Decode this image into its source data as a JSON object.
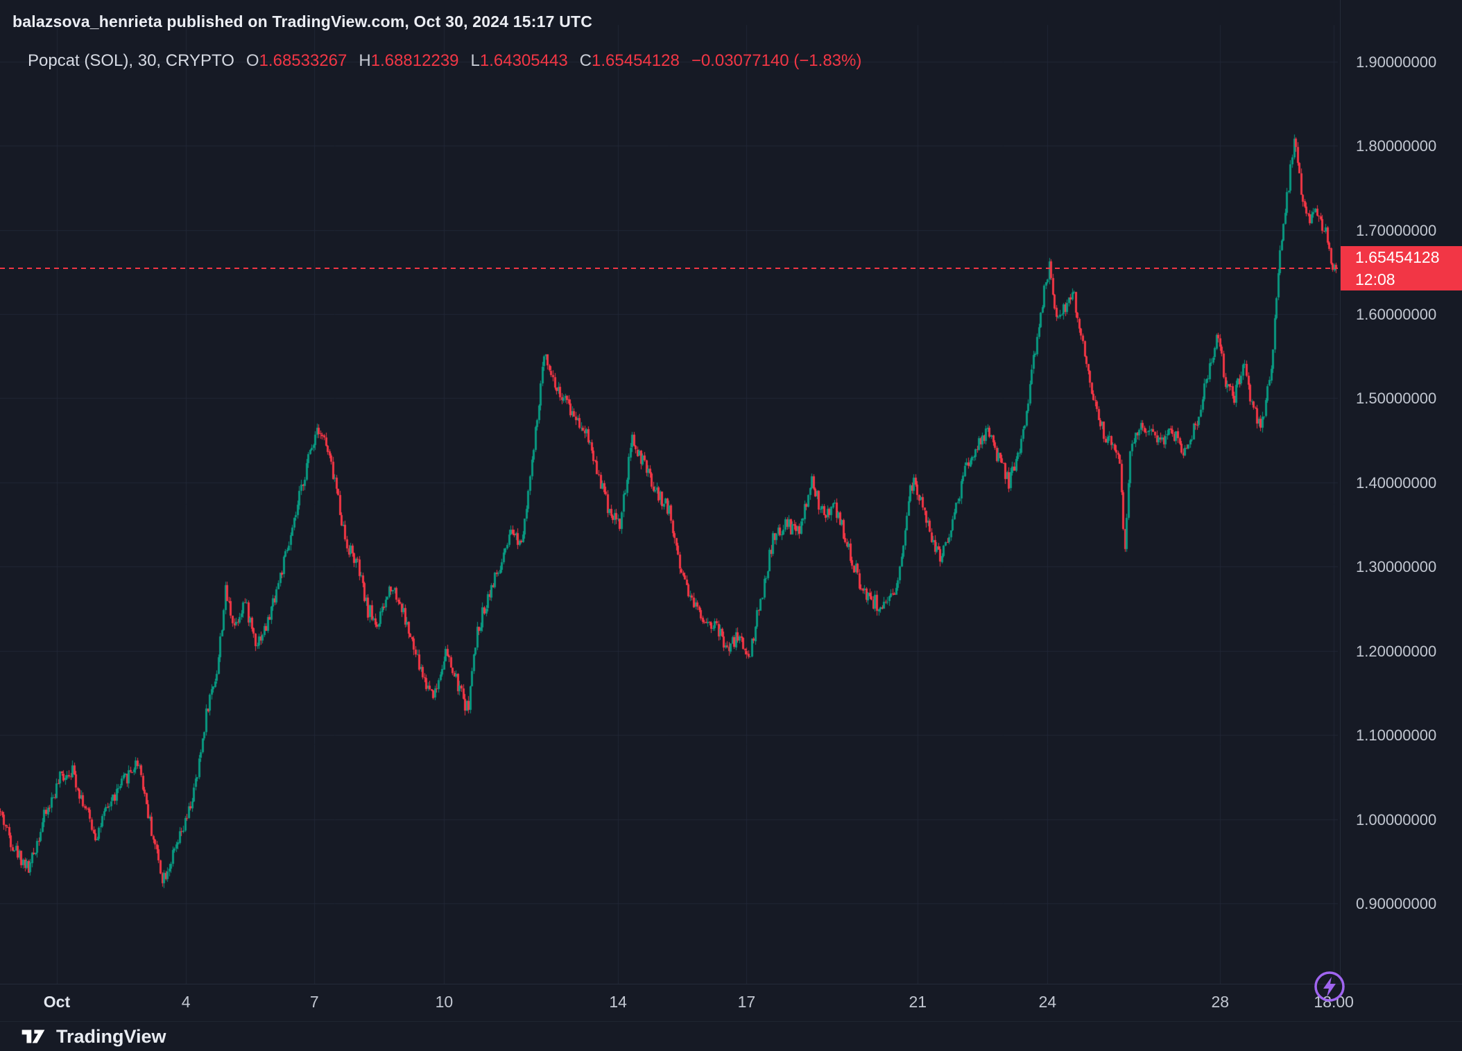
{
  "header": {
    "attribution": "balazsova_henrieta published on TradingView.com, Oct 30, 2024 15:17 UTC",
    "symbol_title": "Popcat (SOL), 30, CRYPTO",
    "ohlc": {
      "o_label": "O",
      "o": "1.68533267",
      "h_label": "H",
      "h": "1.68812239",
      "l_label": "L",
      "l": "1.64305443",
      "c_label": "C",
      "c": "1.65454128",
      "change": "−0.03077140 (−1.83%)"
    }
  },
  "price_scale": {
    "labels": [
      "1.90000000",
      "1.80000000",
      "1.70000000",
      "1.60000000",
      "1.50000000",
      "1.40000000",
      "1.30000000",
      "1.20000000",
      "1.10000000",
      "1.00000000",
      "0.90000000"
    ],
    "last_price_label": "1.65454128",
    "countdown": "12:08"
  },
  "time_scale": {
    "labels": [
      "Oct",
      "4",
      "7",
      "10",
      "14",
      "17",
      "21",
      "24",
      "28",
      "18:00"
    ]
  },
  "footer": {
    "brand": "TradingView"
  },
  "colors": {
    "background": "#161a25",
    "grid": "#202736",
    "up": "#089981",
    "down": "#f23645",
    "text_primary": "#eceef4",
    "text_secondary": "#c2c7d1",
    "axis_line": "#242b39",
    "badge_bg": "#f23645",
    "accent_purple": "#a065f0"
  },
  "chart_data": {
    "type": "candlestick",
    "title": "Popcat (SOL), 30, CRYPTO",
    "interval_minutes": 30,
    "open": 1.68533267,
    "high": 1.68812239,
    "low": 1.64305443,
    "close": 1.65454128,
    "change": -0.0307714,
    "change_pct": -1.83,
    "last_price": 1.65454128,
    "countdown": "12:08",
    "y_axis": {
      "min": 0.8046,
      "max": 1.9236,
      "ticks": [
        1.9,
        1.8,
        1.7,
        1.6,
        1.5,
        1.4,
        1.3,
        1.2,
        1.1,
        1.0,
        0.9
      ]
    },
    "x_axis": {
      "ticks": [
        {
          "label": "Oct",
          "f": 0.0425,
          "major": true
        },
        {
          "label": "4",
          "f": 0.139
        },
        {
          "label": "7",
          "f": 0.235
        },
        {
          "label": "10",
          "f": 0.332
        },
        {
          "label": "14",
          "f": 0.462
        },
        {
          "label": "17",
          "f": 0.558
        },
        {
          "label": "21",
          "f": 0.686
        },
        {
          "label": "24",
          "f": 0.783
        },
        {
          "label": "28",
          "f": 0.912
        },
        {
          "label": "18:00",
          "f": 0.997
        }
      ]
    },
    "candle_count": 760,
    "noise_amplitude": 0.009,
    "wick_amplitude": 0.006,
    "seed": 42,
    "price_path": [
      [
        0.0,
        1.01
      ],
      [
        0.01,
        0.97
      ],
      [
        0.022,
        0.94
      ],
      [
        0.033,
        1.0
      ],
      [
        0.046,
        1.05
      ],
      [
        0.054,
        1.06
      ],
      [
        0.065,
        1.01
      ],
      [
        0.072,
        0.98
      ],
      [
        0.083,
        1.02
      ],
      [
        0.095,
        1.05
      ],
      [
        0.104,
        1.07
      ],
      [
        0.112,
        1.0
      ],
      [
        0.122,
        0.93
      ],
      [
        0.131,
        0.96
      ],
      [
        0.14,
        1.0
      ],
      [
        0.148,
        1.05
      ],
      [
        0.155,
        1.13
      ],
      [
        0.163,
        1.18
      ],
      [
        0.169,
        1.27
      ],
      [
        0.176,
        1.23
      ],
      [
        0.183,
        1.26
      ],
      [
        0.192,
        1.21
      ],
      [
        0.2,
        1.23
      ],
      [
        0.21,
        1.29
      ],
      [
        0.219,
        1.34
      ],
      [
        0.228,
        1.41
      ],
      [
        0.238,
        1.47
      ],
      [
        0.243,
        1.45
      ],
      [
        0.251,
        1.4
      ],
      [
        0.259,
        1.33
      ],
      [
        0.268,
        1.3
      ],
      [
        0.275,
        1.25
      ],
      [
        0.283,
        1.23
      ],
      [
        0.293,
        1.28
      ],
      [
        0.301,
        1.25
      ],
      [
        0.31,
        1.2
      ],
      [
        0.319,
        1.16
      ],
      [
        0.326,
        1.15
      ],
      [
        0.333,
        1.2
      ],
      [
        0.34,
        1.17
      ],
      [
        0.35,
        1.13
      ],
      [
        0.357,
        1.22
      ],
      [
        0.366,
        1.27
      ],
      [
        0.375,
        1.3
      ],
      [
        0.383,
        1.34
      ],
      [
        0.39,
        1.33
      ],
      [
        0.398,
        1.42
      ],
      [
        0.408,
        1.56
      ],
      [
        0.414,
        1.52
      ],
      [
        0.421,
        1.5
      ],
      [
        0.43,
        1.48
      ],
      [
        0.439,
        1.46
      ],
      [
        0.446,
        1.42
      ],
      [
        0.455,
        1.37
      ],
      [
        0.464,
        1.35
      ],
      [
        0.473,
        1.45
      ],
      [
        0.482,
        1.42
      ],
      [
        0.49,
        1.39
      ],
      [
        0.5,
        1.37
      ],
      [
        0.509,
        1.3
      ],
      [
        0.518,
        1.26
      ],
      [
        0.526,
        1.24
      ],
      [
        0.535,
        1.23
      ],
      [
        0.545,
        1.2
      ],
      [
        0.552,
        1.22
      ],
      [
        0.56,
        1.19
      ],
      [
        0.569,
        1.26
      ],
      [
        0.578,
        1.33
      ],
      [
        0.588,
        1.35
      ],
      [
        0.598,
        1.34
      ],
      [
        0.607,
        1.4
      ],
      [
        0.616,
        1.36
      ],
      [
        0.625,
        1.37
      ],
      [
        0.633,
        1.33
      ],
      [
        0.643,
        1.28
      ],
      [
        0.652,
        1.26
      ],
      [
        0.662,
        1.25
      ],
      [
        0.671,
        1.27
      ],
      [
        0.68,
        1.39
      ],
      [
        0.685,
        1.4
      ],
      [
        0.695,
        1.34
      ],
      [
        0.703,
        1.31
      ],
      [
        0.712,
        1.35
      ],
      [
        0.721,
        1.41
      ],
      [
        0.73,
        1.44
      ],
      [
        0.739,
        1.46
      ],
      [
        0.746,
        1.43
      ],
      [
        0.755,
        1.4
      ],
      [
        0.764,
        1.45
      ],
      [
        0.771,
        1.52
      ],
      [
        0.778,
        1.6
      ],
      [
        0.785,
        1.66
      ],
      [
        0.79,
        1.6
      ],
      [
        0.798,
        1.61
      ],
      [
        0.803,
        1.62
      ],
      [
        0.81,
        1.56
      ],
      [
        0.818,
        1.5
      ],
      [
        0.825,
        1.46
      ],
      [
        0.832,
        1.44
      ],
      [
        0.838,
        1.43
      ],
      [
        0.841,
        1.3
      ],
      [
        0.845,
        1.44
      ],
      [
        0.851,
        1.46
      ],
      [
        0.859,
        1.47
      ],
      [
        0.868,
        1.45
      ],
      [
        0.876,
        1.46
      ],
      [
        0.885,
        1.44
      ],
      [
        0.895,
        1.47
      ],
      [
        0.903,
        1.53
      ],
      [
        0.911,
        1.58
      ],
      [
        0.916,
        1.52
      ],
      [
        0.923,
        1.5
      ],
      [
        0.93,
        1.54
      ],
      [
        0.938,
        1.48
      ],
      [
        0.945,
        1.47
      ],
      [
        0.952,
        1.56
      ],
      [
        0.957,
        1.68
      ],
      [
        0.962,
        1.73
      ],
      [
        0.968,
        1.81
      ],
      [
        0.973,
        1.74
      ],
      [
        0.978,
        1.71
      ],
      [
        0.985,
        1.72
      ],
      [
        0.991,
        1.7
      ],
      [
        0.997,
        1.654
      ]
    ]
  }
}
